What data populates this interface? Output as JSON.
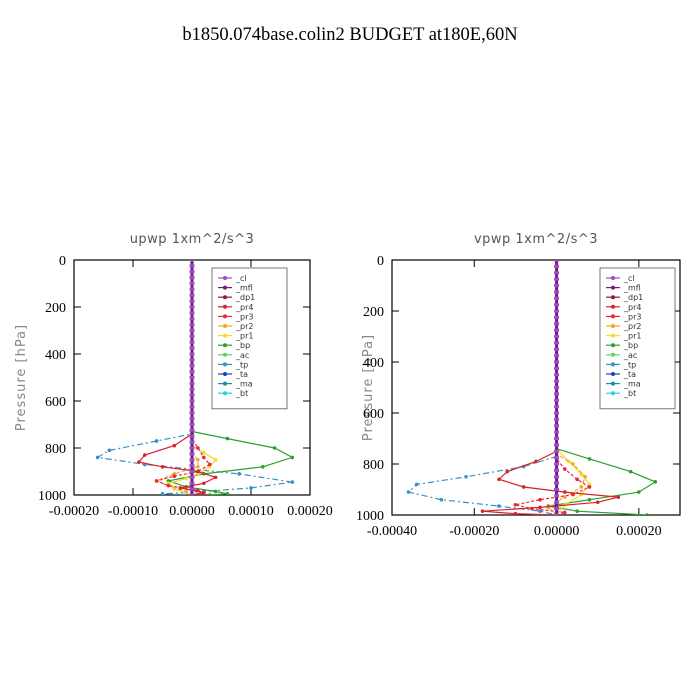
{
  "figure": {
    "title": "b1850.074base.colin2  BUDGET at180E,60N"
  },
  "legend_labels": [
    "_cl",
    "_mfl",
    "_dp1",
    "_pr4",
    "_pr3",
    "_pr2",
    "_pr1",
    "_bp",
    "_ac",
    "_tp",
    "_ta",
    "_ma",
    "_bt"
  ],
  "colors": {
    "_cl": "#9b4dca",
    "_mfl": "#7a1a7a",
    "_dp1": "#8e1a3a",
    "_pr4": "#d8232a",
    "_pr3": "#e8283a",
    "_pr2": "#f5a623",
    "_pr1": "#f2dc28",
    "_bp": "#2ca02c",
    "_ac": "#5fd35f",
    "_tp": "#3a8fc8",
    "_ta": "#1f3fbf",
    "_ma": "#1a8f9a",
    "_bt": "#22d3e6"
  },
  "chart_data": [
    {
      "type": "line",
      "title": "upwp  1xm^2/s^3",
      "ylabel": "Pressure [hPa]",
      "xlabel": "",
      "xlim": [
        -0.0002,
        0.0002
      ],
      "ylim": [
        1000,
        0
      ],
      "xticks": [
        -0.0002,
        -0.0001,
        0,
        0.0001,
        0.0002
      ],
      "xtick_labels": [
        "-0.00020",
        "-0.00010",
        "0.00000",
        "0.00010",
        "0.00020"
      ],
      "yticks": [
        0,
        200,
        400,
        600,
        800,
        1000
      ],
      "legend_position": "top-right",
      "series": [
        {
          "name": "_cl",
          "x": [
            0,
            0,
            0,
            0
          ],
          "y": [
            0,
            400,
            800,
            1000
          ]
        },
        {
          "name": "_mfl",
          "x": [
            0,
            0,
            0,
            0
          ],
          "y": [
            0,
            400,
            800,
            1000
          ]
        },
        {
          "name": "_dp1",
          "x": [
            0,
            0,
            0,
            0
          ],
          "y": [
            0,
            400,
            800,
            1000
          ]
        },
        {
          "name": "_pr4",
          "x": [
            0,
            0,
            -3e-05,
            -8e-05,
            -9e-05,
            -5e-05,
            1e-05,
            4e-05,
            2e-05,
            -2e-05,
            2e-05,
            0
          ],
          "y": [
            0,
            740,
            790,
            830,
            860,
            880,
            900,
            925,
            950,
            970,
            990,
            1000
          ]
        },
        {
          "name": "_pr3",
          "x": [
            0,
            0,
            1e-05,
            2e-05,
            3e-05,
            1e-05,
            -3e-05,
            -6e-05,
            -4e-05,
            1e-05,
            2e-05,
            0
          ],
          "y": [
            0,
            760,
            800,
            840,
            870,
            900,
            920,
            940,
            960,
            980,
            995,
            1000
          ]
        },
        {
          "name": "_pr2",
          "x": [
            0,
            0,
            1e-05,
            1e-05,
            -3e-05,
            -6e-05,
            -4e-05,
            -1e-05,
            0
          ],
          "y": [
            0,
            820,
            850,
            880,
            910,
            940,
            960,
            985,
            1000
          ]
        },
        {
          "name": "_pr1",
          "x": [
            0,
            0,
            2e-05,
            4e-05,
            3e-05,
            1e-05,
            -1e-05,
            -4e-05,
            -3e-05,
            0
          ],
          "y": [
            0,
            790,
            820,
            850,
            880,
            910,
            930,
            950,
            975,
            1000
          ]
        },
        {
          "name": "_bp",
          "x": [
            0,
            0,
            6e-05,
            0.00014,
            0.00017,
            0.00012,
            2e-05,
            -4e-05,
            -1e-05,
            4e-05,
            6e-05,
            3e-05
          ],
          "y": [
            0,
            730,
            760,
            800,
            840,
            880,
            910,
            940,
            965,
            985,
            995,
            1000
          ]
        },
        {
          "name": "_ac",
          "x": [
            0,
            0,
            0,
            0
          ],
          "y": [
            0,
            400,
            800,
            1000
          ]
        },
        {
          "name": "_tp",
          "x": [
            0,
            0,
            -6e-05,
            -0.00014,
            -0.00016,
            -8e-05,
            8e-05,
            0.00017,
            0.0001,
            2e-05,
            -5e-05,
            0
          ],
          "y": [
            0,
            740,
            770,
            810,
            840,
            870,
            910,
            945,
            970,
            985,
            995,
            1000
          ]
        },
        {
          "name": "_ta",
          "x": [
            0,
            0,
            0,
            0
          ],
          "y": [
            0,
            400,
            800,
            1000
          ]
        },
        {
          "name": "_ma",
          "x": [
            0,
            0,
            0,
            0
          ],
          "y": [
            0,
            400,
            800,
            1000
          ]
        },
        {
          "name": "_bt",
          "x": [
            0,
            0,
            0,
            0
          ],
          "y": [
            0,
            400,
            800,
            1000
          ]
        }
      ]
    },
    {
      "type": "line",
      "title": "vpwp  1xm^2/s^3",
      "ylabel": "Pressure [hPa]",
      "xlabel": "",
      "xlim": [
        -0.0004,
        0.0003
      ],
      "ylim": [
        1000,
        0
      ],
      "xticks": [
        -0.0004,
        -0.0002,
        0,
        0.0002
      ],
      "xtick_labels": [
        "-0.00040",
        "-0.00020",
        "0.00000",
        "0.00020"
      ],
      "yticks": [
        0,
        200,
        400,
        600,
        800,
        1000
      ],
      "legend_position": "top-right",
      "series": [
        {
          "name": "_cl",
          "x": [
            0,
            0,
            0,
            0
          ],
          "y": [
            0,
            400,
            800,
            1000
          ]
        },
        {
          "name": "_mfl",
          "x": [
            0,
            0,
            0,
            0
          ],
          "y": [
            0,
            400,
            800,
            1000
          ]
        },
        {
          "name": "_dp1",
          "x": [
            0,
            0,
            0,
            0
          ],
          "y": [
            0,
            400,
            800,
            1000
          ]
        },
        {
          "name": "_pr4",
          "x": [
            0,
            0,
            -5e-05,
            -0.00012,
            -0.00014,
            -8e-05,
            2e-05,
            0.00015,
            0.0001,
            -4e-05,
            -0.00018,
            -0.0001,
            0
          ],
          "y": [
            0,
            750,
            790,
            830,
            860,
            890,
            910,
            930,
            950,
            970,
            985,
            995,
            1000
          ]
        },
        {
          "name": "_pr3",
          "x": [
            0,
            0,
            2e-05,
            5e-05,
            8e-05,
            4e-05,
            -4e-05,
            -0.0001,
            -6e-05,
            2e-05,
            0
          ],
          "y": [
            0,
            780,
            820,
            860,
            890,
            920,
            940,
            960,
            975,
            990,
            1000
          ]
        },
        {
          "name": "_pr2",
          "x": [
            0,
            0,
            4e-05,
            7e-05,
            6e-05,
            2e-05,
            -2e-05,
            0
          ],
          "y": [
            0,
            760,
            800,
            850,
            890,
            930,
            970,
            1000
          ]
        },
        {
          "name": "_pr1",
          "x": [
            0,
            0,
            3e-05,
            6e-05,
            8e-05,
            6e-05,
            2e-05,
            0
          ],
          "y": [
            0,
            740,
            790,
            840,
            880,
            920,
            960,
            1000
          ]
        },
        {
          "name": "_bp",
          "x": [
            0,
            0,
            8e-05,
            0.00018,
            0.00024,
            0.0002,
            8e-05,
            -2e-05,
            5e-05,
            0.00022
          ],
          "y": [
            0,
            740,
            780,
            830,
            870,
            910,
            940,
            965,
            985,
            1000
          ]
        },
        {
          "name": "_ac",
          "x": [
            0,
            0,
            0,
            0
          ],
          "y": [
            0,
            400,
            800,
            1000
          ]
        },
        {
          "name": "_tp",
          "x": [
            0,
            0,
            -8e-05,
            -0.00022,
            -0.00034,
            -0.00036,
            -0.00028,
            -0.00014,
            -4e-05,
            0
          ],
          "y": [
            0,
            770,
            810,
            850,
            880,
            910,
            940,
            965,
            985,
            1000
          ]
        },
        {
          "name": "_ta",
          "x": [
            0,
            0,
            0,
            0
          ],
          "y": [
            0,
            400,
            800,
            1000
          ]
        },
        {
          "name": "_ma",
          "x": [
            0,
            0,
            0,
            0
          ],
          "y": [
            0,
            400,
            800,
            1000
          ]
        },
        {
          "name": "_bt",
          "x": [
            0,
            0,
            0,
            0
          ],
          "y": [
            0,
            400,
            800,
            1000
          ]
        }
      ]
    }
  ]
}
